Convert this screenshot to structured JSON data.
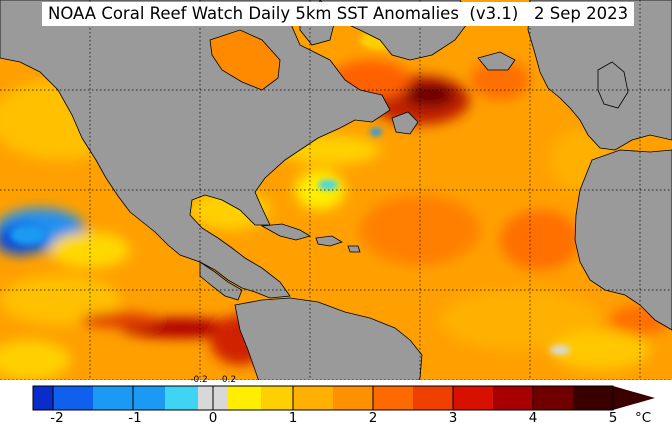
{
  "title": "NOAA Coral Reef Watch Daily 5km SST Anomalies  (v3.1)   2 Sep 2023",
  "colorbar": {
    "unit": "°C",
    "tick_labels": [
      "-2",
      "-1",
      "0",
      "1",
      "2",
      "3",
      "4",
      "5"
    ],
    "small_labels": [
      "-0.2",
      "0.2"
    ],
    "colors": {
      "neg2": "#0a2cc8",
      "neg15": "#1060ee",
      "neg1": "#1a9af2",
      "neg05": "#40d4f4",
      "neutral": "#d8d8d8",
      "pos05": "#ffee00",
      "pos1": "#ffd000",
      "pos15": "#ffb000",
      "pos2": "#ff9000",
      "pos25": "#ff6a00",
      "pos3": "#f04000",
      "pos35": "#d81000",
      "pos4": "#a80000",
      "pos45": "#700000",
      "pos5": "#3a0000"
    }
  },
  "map": {
    "land_color": "#9a9a9a",
    "ocean_base_color": "#ffa000",
    "graticule": "dotted black lines"
  }
}
